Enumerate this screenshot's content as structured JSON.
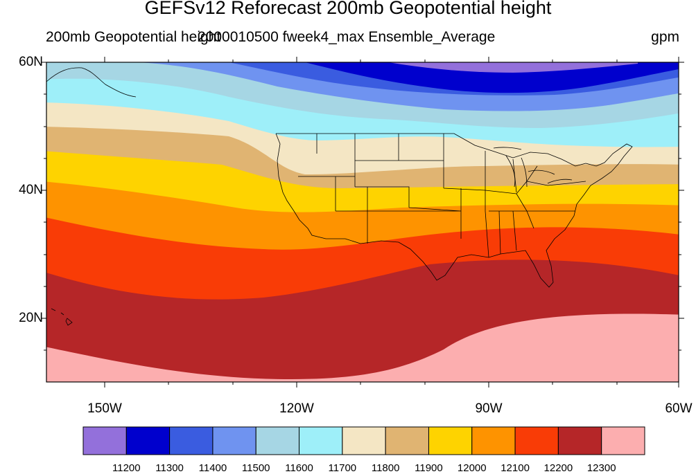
{
  "title": "GEFSv12 Reforecast 200mb Geopotential height",
  "subtitle_left": "200mb Geopotential height",
  "subtitle_center": "2000010500 fweek4_max Ensemble_Average",
  "units": "gpm",
  "lat_labels": [
    "60N",
    "40N",
    "20N"
  ],
  "lon_labels": [
    "150W",
    "120W",
    "90W",
    "60W"
  ],
  "colorbar": {
    "colors": [
      "#9370db",
      "#0000cd",
      "#3a5ce0",
      "#6f93f0",
      "#a6d6e4",
      "#9eeff9",
      "#f4e6c4",
      "#e0b472",
      "#fed300",
      "#fe9300",
      "#f93c06",
      "#b52628",
      "#fcaeaf"
    ],
    "labels": [
      "11200",
      "11300",
      "11400",
      "11500",
      "11600",
      "11700",
      "11800",
      "11900",
      "12000",
      "12100",
      "12200",
      "12300"
    ]
  }
}
